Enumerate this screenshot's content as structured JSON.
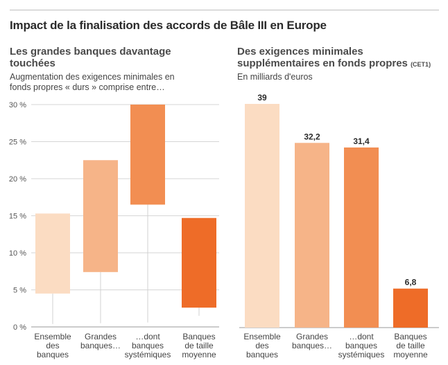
{
  "title": "Impact de la finalisation des accords de Bâle III en Europe",
  "chart_data": [
    {
      "type": "bar",
      "chart_kind": "floating-range",
      "title": "Les grandes banques davantage touchées",
      "subtitle": "Augmentation des exigences minimales en fonds propres « durs » comprise entre…",
      "ylim": [
        0,
        30
      ],
      "yticks": [
        "0 %",
        "5 %",
        "10 %",
        "15 %",
        "20 %",
        "25 %",
        "30 %"
      ],
      "ytick_values": [
        0,
        5,
        10,
        15,
        20,
        25,
        30
      ],
      "grid": true,
      "categories": [
        [
          "Ensemble",
          "des",
          "banques"
        ],
        [
          "Grandes",
          "banques…"
        ],
        [
          "…dont",
          "banques",
          "systémiques"
        ],
        [
          "Banques",
          "de taille",
          "moyenne"
        ]
      ],
      "ranges": [
        [
          4.5,
          15.3
        ],
        [
          7.4,
          22.5
        ],
        [
          16.5,
          30
        ],
        [
          2.6,
          14.7
        ]
      ],
      "whisker_low": [
        0.4,
        0.5,
        0.6,
        1.5
      ],
      "colors": [
        "#fbdcc2",
        "#f6b488",
        "#f28e52",
        "#ee6c28"
      ]
    },
    {
      "type": "bar",
      "title": "Des exigences minimales supplémentaires en fonds propres",
      "title_suffix": "(CET1)",
      "subtitle": "En milliards d'euros",
      "categories": [
        [
          "Ensemble",
          "des",
          "banques"
        ],
        [
          "Grandes",
          "banques…"
        ],
        [
          "…dont",
          "banques",
          "systémiques"
        ],
        [
          "Banques",
          "de taille",
          "moyenne"
        ]
      ],
      "values": [
        39,
        32.2,
        31.4,
        6.8
      ],
      "labels": [
        "39",
        "32,2",
        "31,4",
        "6,8"
      ],
      "ylim": [
        0,
        39
      ],
      "colors": [
        "#fbdcc2",
        "#f6b488",
        "#f28e52",
        "#ee6c28"
      ]
    }
  ]
}
